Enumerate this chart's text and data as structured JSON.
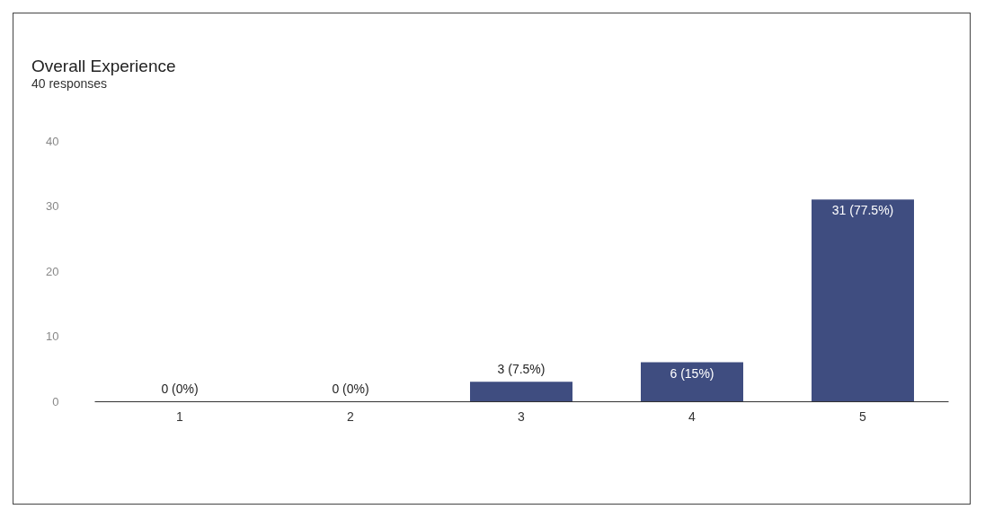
{
  "chart_data": {
    "type": "bar",
    "title": "Overall Experience",
    "subtitle": "40 responses",
    "categories": [
      "1",
      "2",
      "3",
      "4",
      "5"
    ],
    "values": [
      0,
      0,
      3,
      6,
      31
    ],
    "value_labels": [
      "0 (0%)",
      "0 (0%)",
      "3 (7.5%)",
      "6 (15%)",
      "31 (77.5%)"
    ],
    "color": "#3f4d80",
    "ylim": [
      0,
      40
    ],
    "yticks": [
      0,
      10,
      20,
      30,
      40
    ]
  }
}
